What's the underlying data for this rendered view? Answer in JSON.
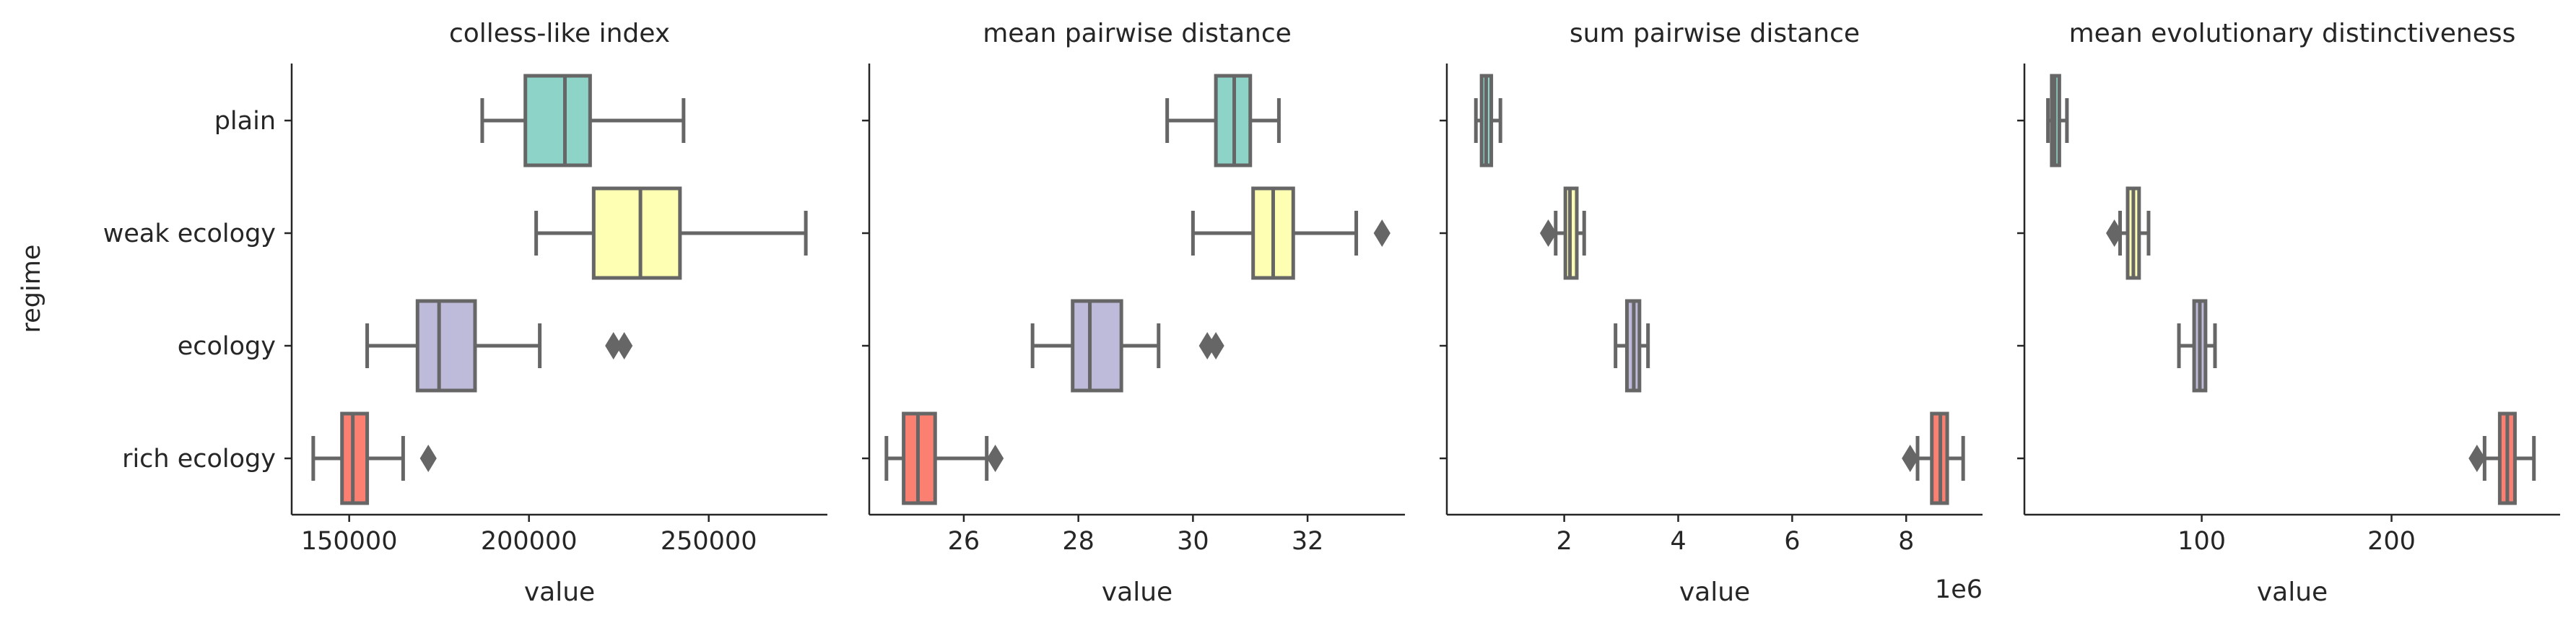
{
  "chart_data": {
    "type": "box",
    "shared_y_label": "regime",
    "categories": [
      "plain",
      "weak ecology",
      "ecology",
      "rich ecology"
    ],
    "palette": [
      "#8dd3c7",
      "#ffffb3",
      "#bebada",
      "#fb8072"
    ],
    "line_color": "#666666",
    "grid": false,
    "legend": "none",
    "panels": [
      {
        "title": "colless-like index",
        "xlabel": "value",
        "offset_label": "",
        "xlim": [
          134000,
          283000
        ],
        "xticks": [
          150000,
          200000,
          250000
        ],
        "xtick_labels": [
          "150000",
          "200000",
          "250000"
        ],
        "boxes": [
          {
            "category": "plain",
            "whisker_low": 187000,
            "q1": 199000,
            "median": 210000,
            "q3": 217000,
            "whisker_high": 243000,
            "outliers": []
          },
          {
            "category": "weak ecology",
            "whisker_low": 202000,
            "q1": 218000,
            "median": 231000,
            "q3": 242000,
            "whisker_high": 277000,
            "outliers": []
          },
          {
            "category": "ecology",
            "whisker_low": 155000,
            "q1": 169000,
            "median": 175000,
            "q3": 185000,
            "whisker_high": 203000,
            "outliers": [
              223500,
              226500
            ]
          },
          {
            "category": "rich ecology",
            "whisker_low": 140000,
            "q1": 148000,
            "median": 151000,
            "q3": 155000,
            "whisker_high": 165000,
            "outliers": [
              172000
            ]
          }
        ]
      },
      {
        "title": "mean pairwise distance",
        "xlabel": "value",
        "offset_label": "",
        "xlim": [
          24.35,
          33.7
        ],
        "xticks": [
          26,
          28,
          30,
          32
        ],
        "xtick_labels": [
          "26",
          "28",
          "30",
          "32"
        ],
        "boxes": [
          {
            "category": "plain",
            "whisker_low": 29.55,
            "q1": 30.4,
            "median": 30.72,
            "q3": 31.0,
            "whisker_high": 31.5,
            "outliers": []
          },
          {
            "category": "weak ecology",
            "whisker_low": 30.0,
            "q1": 31.05,
            "median": 31.4,
            "q3": 31.75,
            "whisker_high": 32.85,
            "outliers": [
              33.3
            ]
          },
          {
            "category": "ecology",
            "whisker_low": 27.2,
            "q1": 27.9,
            "median": 28.2,
            "q3": 28.75,
            "whisker_high": 29.4,
            "outliers": [
              30.25,
              30.4
            ]
          },
          {
            "category": "rich ecology",
            "whisker_low": 24.65,
            "q1": 24.95,
            "median": 25.2,
            "q3": 25.5,
            "whisker_high": 26.4,
            "outliers": [
              26.55
            ]
          }
        ]
      },
      {
        "title": "sum pairwise distance",
        "xlabel": "value",
        "offset_label": "1e6",
        "xlim": [
          -0.06,
          9.34
        ],
        "xticks": [
          2,
          4,
          6,
          8
        ],
        "xtick_labels": [
          "2",
          "4",
          "6",
          "8"
        ],
        "boxes": [
          {
            "category": "plain",
            "whisker_low": 0.45,
            "q1": 0.55,
            "median": 0.63,
            "q3": 0.72,
            "whisker_high": 0.88,
            "outliers": []
          },
          {
            "category": "weak ecology",
            "whisker_low": 1.85,
            "q1": 2.02,
            "median": 2.1,
            "q3": 2.22,
            "whisker_high": 2.35,
            "outliers": [
              1.72
            ]
          },
          {
            "category": "ecology",
            "whisker_low": 2.9,
            "q1": 3.1,
            "median": 3.22,
            "q3": 3.32,
            "whisker_high": 3.47,
            "outliers": []
          },
          {
            "category": "rich ecology",
            "whisker_low": 8.2,
            "q1": 8.45,
            "median": 8.6,
            "q3": 8.72,
            "whisker_high": 9.0,
            "outliers": [
              8.07
            ]
          }
        ]
      },
      {
        "title": "mean evolutionary distinctiveness",
        "xlabel": "value",
        "offset_label": "",
        "xlim": [
          6.6,
          288.8
        ],
        "xticks": [
          100,
          200
        ],
        "xtick_labels": [
          "100",
          "200"
        ],
        "boxes": [
          {
            "category": "plain",
            "whisker_low": 19,
            "q1": 21,
            "median": 22.5,
            "q3": 25,
            "whisker_high": 29,
            "outliers": []
          },
          {
            "category": "weak ecology",
            "whisker_low": 57,
            "q1": 61,
            "median": 64,
            "q3": 67,
            "whisker_high": 72,
            "outliers": [
              54
            ]
          },
          {
            "category": "ecology",
            "whisker_low": 88,
            "q1": 96,
            "median": 99,
            "q3": 102,
            "whisker_high": 107,
            "outliers": []
          },
          {
            "category": "rich ecology",
            "whisker_low": 249,
            "q1": 257,
            "median": 261,
            "q3": 265,
            "whisker_high": 275,
            "outliers": [
              245
            ]
          }
        ]
      }
    ]
  }
}
